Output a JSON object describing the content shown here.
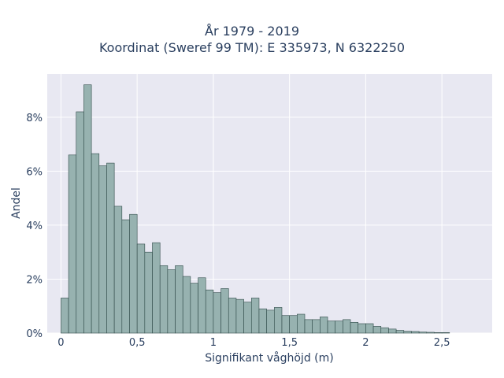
{
  "chart_data": {
    "type": "bar",
    "title": [
      "År 1979 - 2019",
      "Koordinat (Sweref 99 TM): E 335973, N 6322250"
    ],
    "xlabel": "Signifikant våghöjd (m)",
    "ylabel": "Andel",
    "xlim": [
      -0.09,
      2.83
    ],
    "ylim": [
      0,
      9.6
    ],
    "x_ticks": [
      0,
      0.5,
      1,
      1.5,
      2,
      2.5
    ],
    "x_tick_labels": [
      "0",
      "0,5",
      "1",
      "1,5",
      "2",
      "2,5"
    ],
    "y_ticks": [
      0,
      2,
      4,
      6,
      8
    ],
    "y_tick_labels": [
      "0%",
      "2%",
      "4%",
      "6%",
      "8%"
    ],
    "bin_start": 0.025,
    "bin_width": 0.05,
    "values": [
      1.3,
      6.6,
      8.2,
      9.2,
      6.65,
      6.2,
      6.3,
      4.7,
      4.2,
      4.4,
      3.3,
      3.0,
      3.35,
      2.5,
      2.35,
      2.5,
      2.1,
      1.85,
      2.05,
      1.6,
      1.5,
      1.65,
      1.3,
      1.25,
      1.15,
      1.3,
      0.9,
      0.85,
      0.95,
      0.65,
      0.65,
      0.7,
      0.5,
      0.5,
      0.6,
      0.45,
      0.45,
      0.5,
      0.4,
      0.35,
      0.35,
      0.25,
      0.2,
      0.15,
      0.1,
      0.07,
      0.06,
      0.04,
      0.03,
      0.02,
      0.02
    ],
    "grid": true,
    "colors": {
      "bar_fill": "#97b2b0",
      "bar_stroke": "#2f4a48",
      "plot_bg": "#e8e8f2",
      "grid": "#ffffff"
    }
  }
}
